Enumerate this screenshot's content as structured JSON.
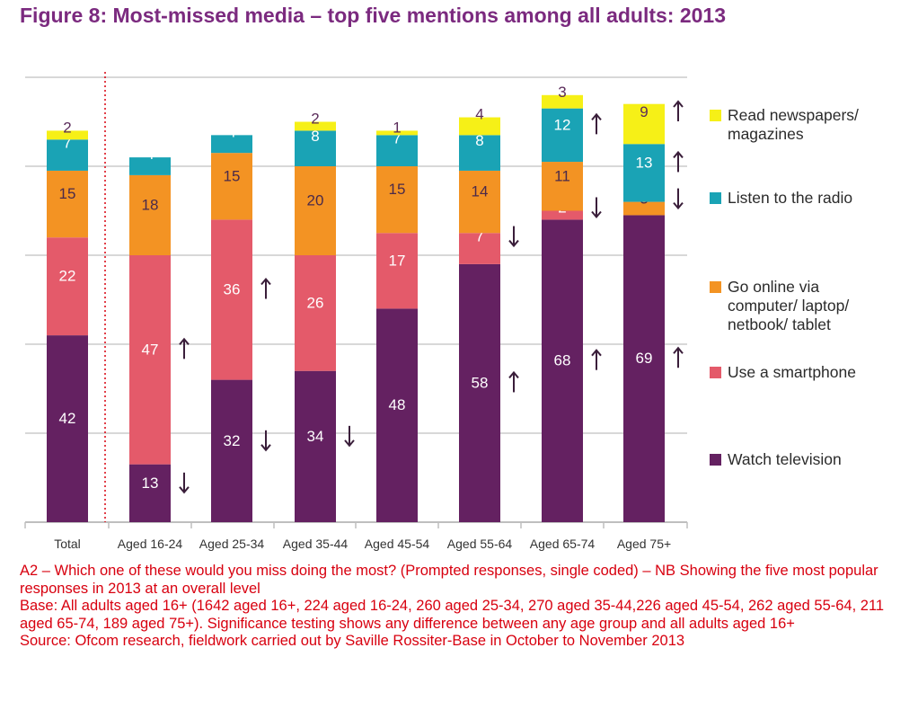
{
  "title": "Figure 8: Most-missed media – top five mentions among all adults: 2013",
  "colors": {
    "Watch television": "#642161",
    "Use a smartphone": "#e45a6a",
    "Go online via computer/ laptop/ netbook/ tablet": "#f39323",
    "Listen to the radio": "#1aa3b5",
    "Read newspapers/ magazines": "#f6f017",
    "gridline": "#cccccc",
    "divider": "#d8000f",
    "arrow": "#3a1e3a"
  },
  "chart_data": {
    "type": "bar",
    "stacked": true,
    "title": "Figure 8: Most-missed media – top five mentions among all adults: 2013",
    "categories": [
      "Total",
      "Aged 16-24",
      "Aged 25-34",
      "Aged 35-44",
      "Aged 45-54",
      "Aged 55-64",
      "Aged 65-74",
      "Aged 75+"
    ],
    "ylim": [
      0,
      100
    ],
    "grid": true,
    "legend_position": "right",
    "series": [
      {
        "name": "Watch television",
        "values": [
          42,
          13,
          32,
          34,
          48,
          58,
          68,
          69
        ],
        "significance": [
          "",
          "down",
          "down",
          "down",
          "",
          "up",
          "up",
          "up"
        ]
      },
      {
        "name": "Use a smartphone",
        "values": [
          22,
          47,
          36,
          26,
          17,
          7,
          2,
          0
        ],
        "significance": [
          "",
          "up",
          "up",
          "",
          "",
          "down",
          "down",
          ""
        ]
      },
      {
        "name": "Go online via computer/ laptop/ netbook/ tablet",
        "values": [
          15,
          18,
          15,
          20,
          15,
          14,
          11,
          3
        ],
        "significance": [
          "",
          "",
          "",
          "",
          "",
          "",
          "",
          "down"
        ]
      },
      {
        "name": "Listen to the radio",
        "values": [
          7,
          4,
          4,
          8,
          7,
          8,
          12,
          13
        ],
        "significance": [
          "",
          "",
          "",
          "",
          "",
          "",
          "up",
          "up"
        ]
      },
      {
        "name": "Read newspapers/ magazines",
        "values": [
          2,
          0,
          0,
          2,
          1,
          4,
          3,
          9
        ],
        "significance": [
          "",
          "",
          "",
          "",
          "",
          "",
          "",
          "up"
        ]
      }
    ]
  },
  "legend": [
    {
      "name": "Read newspapers/ magazines",
      "lines": [
        "Read newspapers/",
        "magazines"
      ]
    },
    {
      "name": "Listen to the radio",
      "lines": [
        "Listen to the radio"
      ]
    },
    {
      "name": "Go online via computer/ laptop/ netbook/ tablet",
      "lines": [
        "Go online via",
        "computer/ laptop/",
        "netbook/ tablet"
      ]
    },
    {
      "name": "Use a smartphone",
      "lines": [
        "Use a smartphone"
      ]
    },
    {
      "name": "Watch television",
      "lines": [
        "Watch television"
      ]
    }
  ],
  "notes": {
    "question": "A2 – Which one of these would you miss doing the most? (Prompted responses, single coded) – NB Showing the five most popular responses in 2013 at an overall level",
    "base": "Base: All adults aged 16+ (1642 aged 16+, 224 aged 16-24, 260 aged 25-34, 270 aged 35-44,226 aged 45-54, 262 aged 55-64, 211 aged 65-74, 189 aged 75+). Significance testing shows any difference between any age group and all adults aged 16+",
    "source": "Source: Ofcom research, fieldwork carried out by Saville Rossiter-Base in October to November 2013"
  }
}
